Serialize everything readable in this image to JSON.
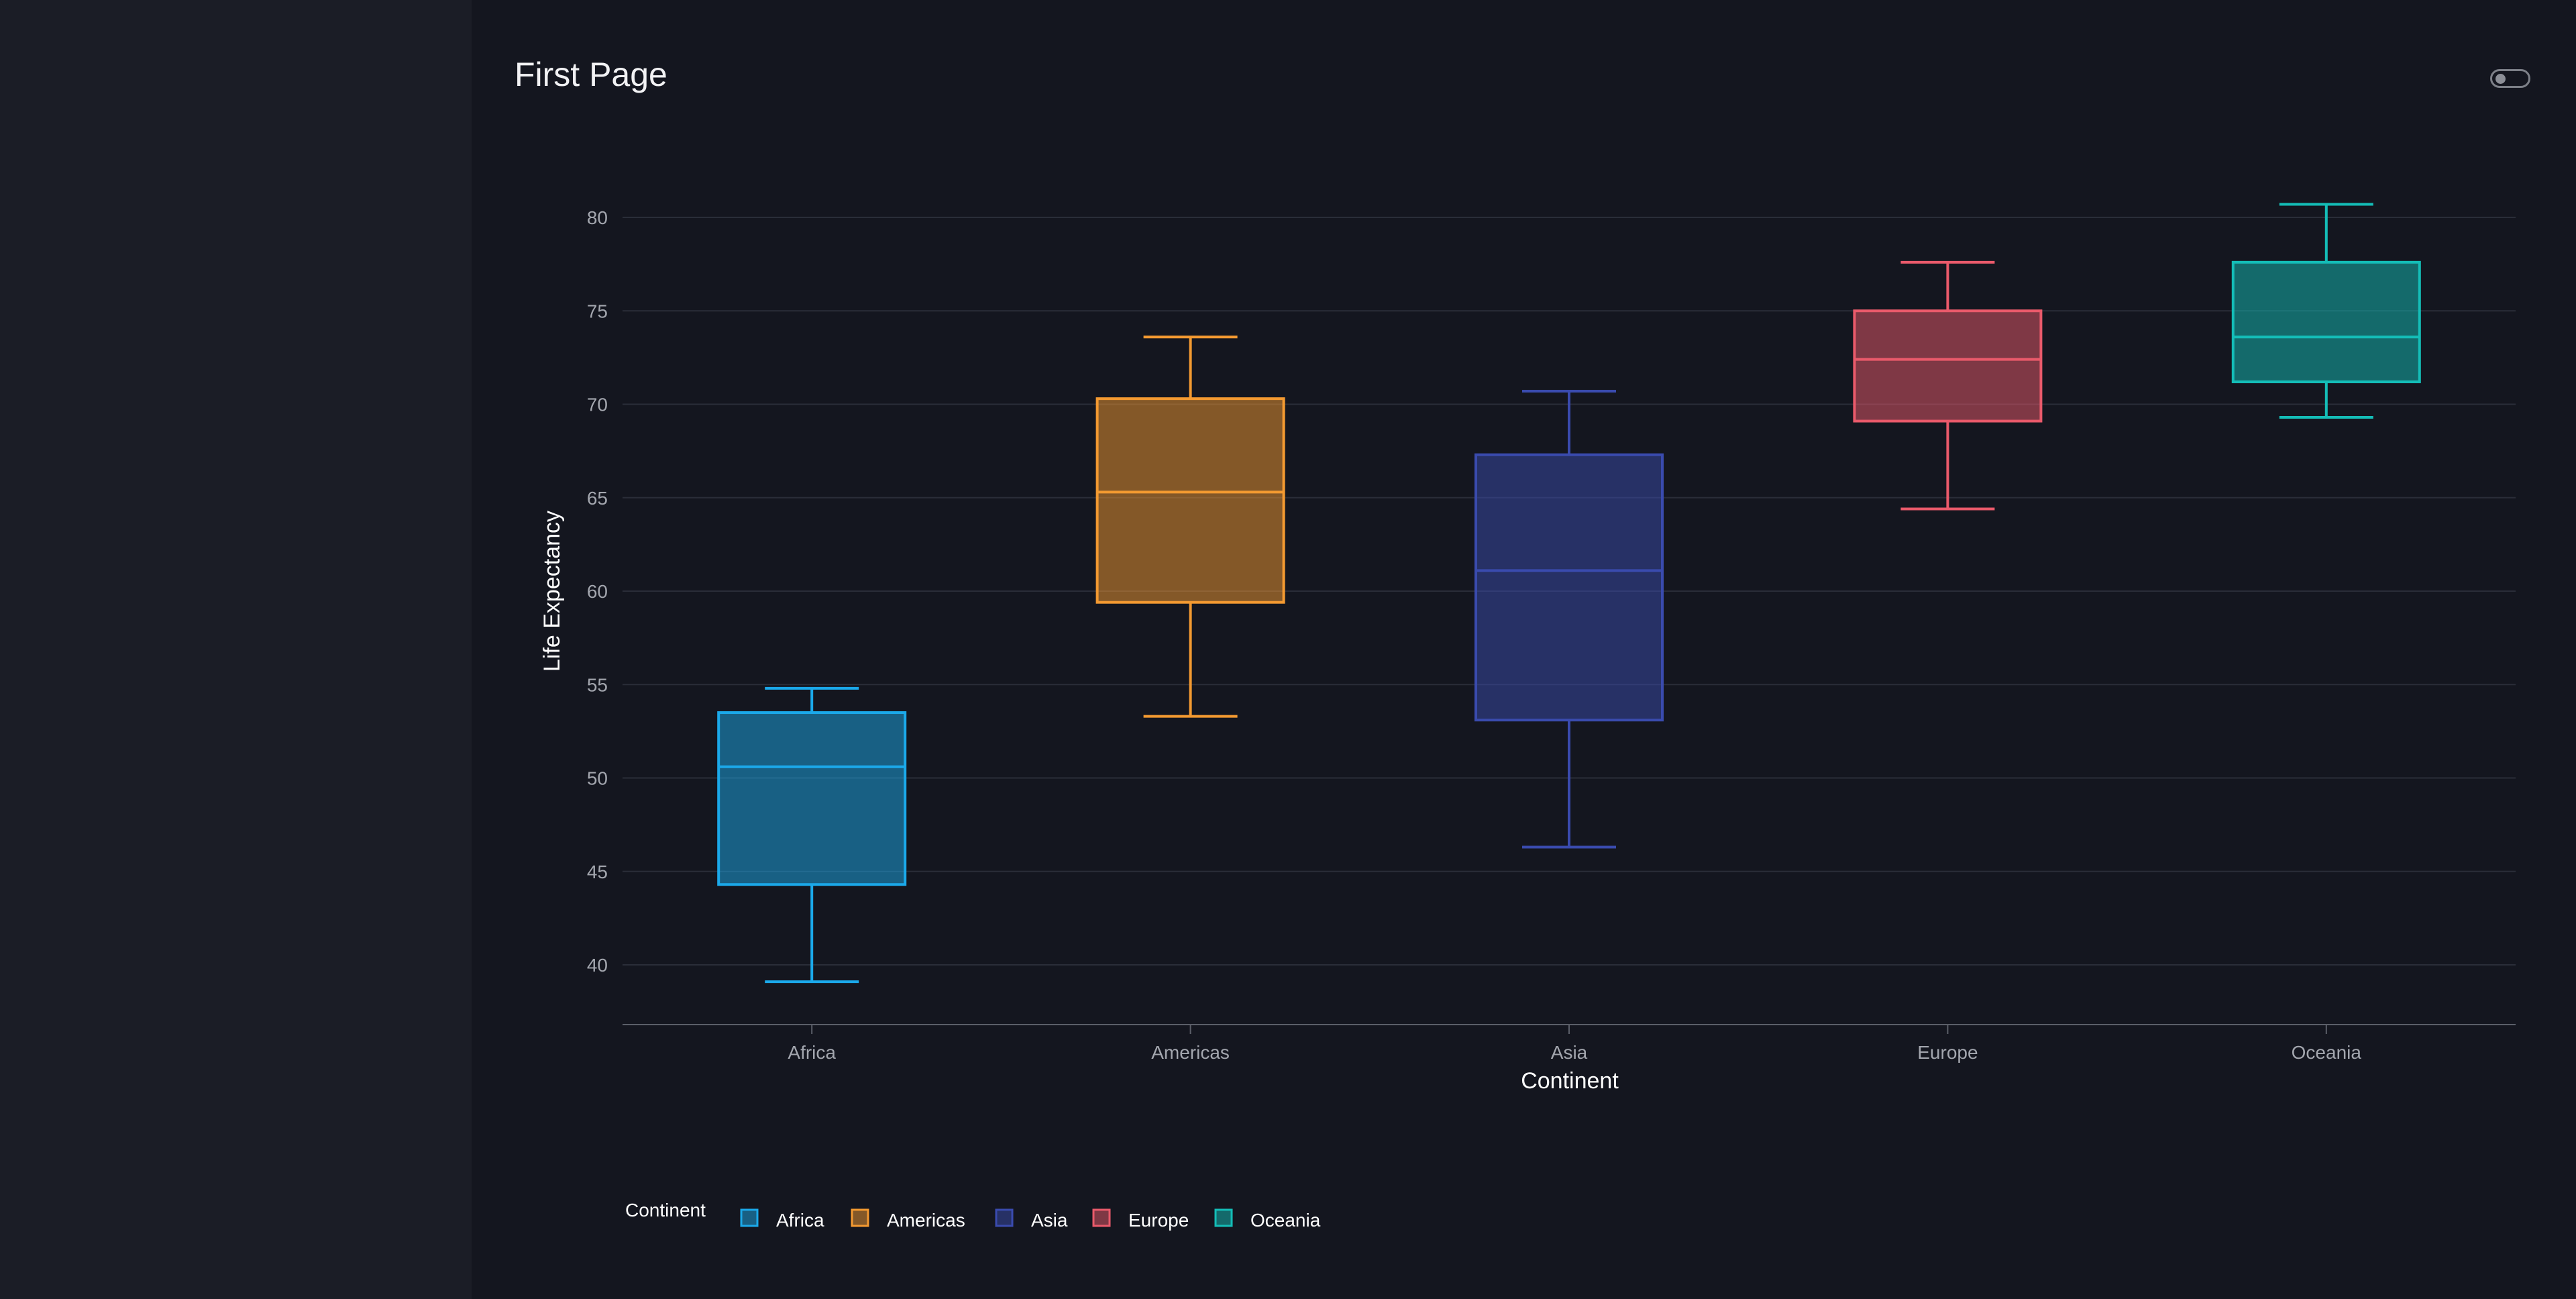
{
  "page": {
    "title": "First Page"
  },
  "toggle": {
    "state": "off"
  },
  "chart_data": {
    "type": "box",
    "xlabel": "Continent",
    "ylabel": "Life Expectancy",
    "ylim": [
      36.8,
      82
    ],
    "yticks": [
      40,
      45,
      50,
      55,
      60,
      65,
      70,
      75,
      80
    ],
    "grid": true,
    "legend": {
      "title": "Continent",
      "placement": "bottom-left"
    },
    "categories": [
      "Africa",
      "Americas",
      "Asia",
      "Europe",
      "Oceania"
    ],
    "series": [
      {
        "name": "Africa",
        "color": "#1ba9ea",
        "min": 39.1,
        "q1": 44.3,
        "median": 50.6,
        "q3": 53.5,
        "max": 54.8
      },
      {
        "name": "Americas",
        "color": "#f49a31",
        "min": 53.3,
        "q1": 59.4,
        "median": 65.3,
        "q3": 70.3,
        "max": 73.6
      },
      {
        "name": "Asia",
        "color": "#3a4bae",
        "min": 46.3,
        "q1": 53.1,
        "median": 61.1,
        "q3": 67.3,
        "max": 70.7
      },
      {
        "name": "Europe",
        "color": "#ea5a6b",
        "min": 64.4,
        "q1": 69.1,
        "median": 72.4,
        "q3": 75.0,
        "max": 77.6
      },
      {
        "name": "Oceania",
        "color": "#14bdb7",
        "min": 69.3,
        "q1": 71.2,
        "median": 73.6,
        "q3": 77.6,
        "max": 80.7
      }
    ]
  }
}
